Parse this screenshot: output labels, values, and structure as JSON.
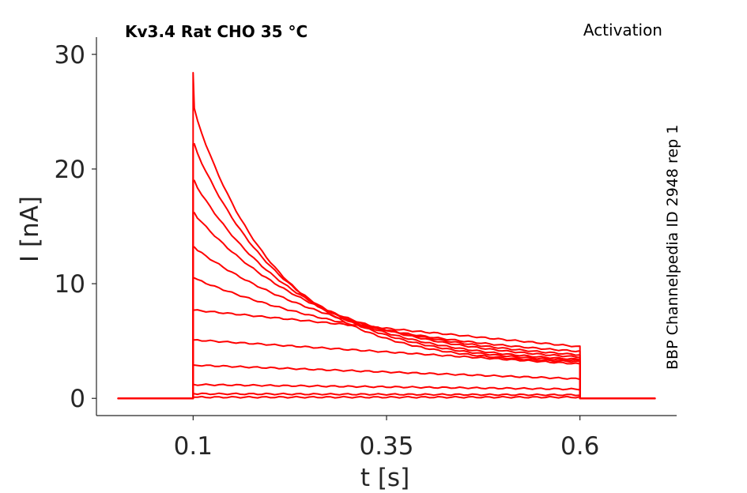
{
  "chart_data": {
    "type": "line",
    "title_left": "Kv3.4  Rat  CHO  35 °C",
    "title_right": "Activation",
    "side_label": "BBP Channelpedia ID 2948 rep 1",
    "xlabel": "t [s]",
    "ylabel": "I [nA]",
    "xlim": [
      -0.025,
      0.725
    ],
    "ylim": [
      -1.5,
      31.5
    ],
    "x_ticks": [
      0.1,
      0.35,
      0.6
    ],
    "x_tick_labels": [
      "0.1",
      "0.35",
      "0.6"
    ],
    "y_ticks": [
      0,
      10,
      20,
      30
    ],
    "y_tick_labels": [
      "0",
      "10",
      "20",
      "30"
    ],
    "grid": false,
    "series_color": "#ff0000",
    "pulse_start": 0.1,
    "pulse_end": 0.6,
    "trace_x_range": [
      0.003,
      0.697
    ],
    "series": [
      {
        "peak": 28.4,
        "plateau": 25.3,
        "end": 3.2
      },
      {
        "peak": 22.2,
        "plateau": 22.2,
        "end": 3.3
      },
      {
        "peak": 19.0,
        "plateau": 19.0,
        "end": 3.4
      },
      {
        "peak": 16.2,
        "plateau": 16.2,
        "end": 3.6
      },
      {
        "peak": 13.2,
        "plateau": 13.2,
        "end": 3.8
      },
      {
        "peak": 10.5,
        "plateau": 10.5,
        "end": 4.1
      },
      {
        "peak": 7.7,
        "plateau": 7.7,
        "end": 4.5
      },
      {
        "peak": 5.1,
        "plateau": 5.1,
        "end": 3.0
      },
      {
        "peak": 2.9,
        "plateau": 2.9,
        "end": 1.7
      },
      {
        "peak": 1.2,
        "plateau": 1.2,
        "end": 0.8
      },
      {
        "peak": 0.4,
        "plateau": 0.4,
        "end": 0.3
      },
      {
        "peak": 0.1,
        "plateau": 0.1,
        "end": 0.1
      }
    ]
  }
}
